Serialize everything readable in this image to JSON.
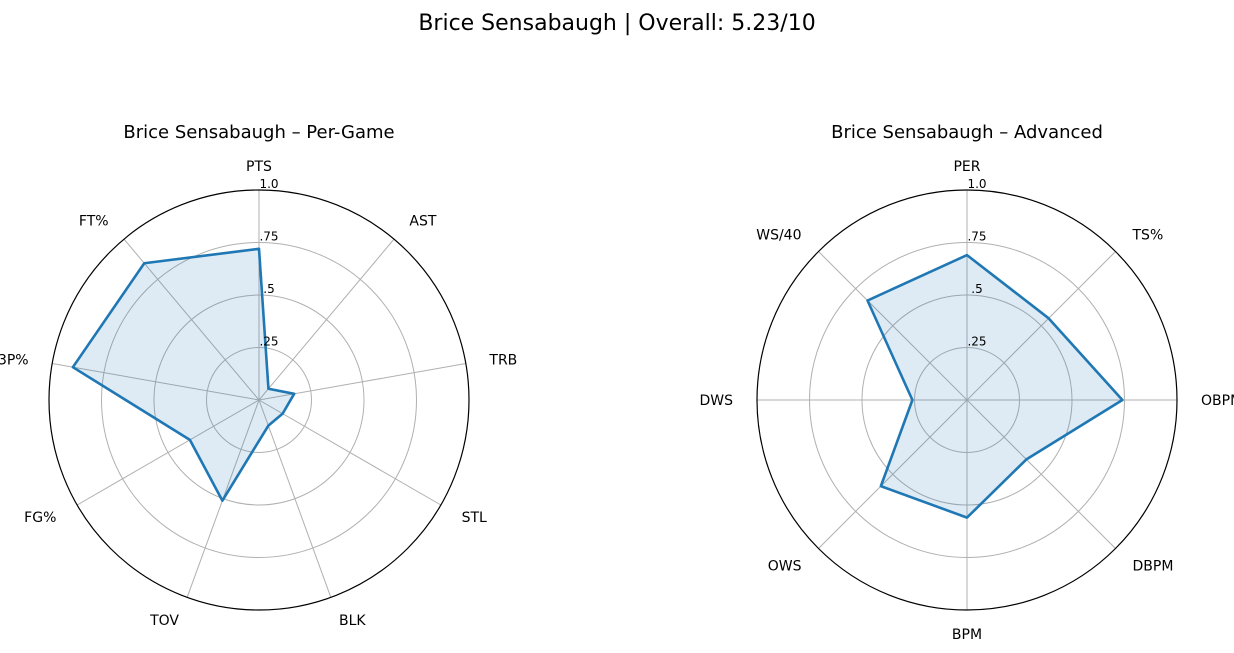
{
  "suptitle": "Brice Sensabaugh | Overall: 5.23/10",
  "colors": {
    "line": "#1f77b4",
    "fill": "#1f77b4",
    "grid": "#b0b0b0",
    "frame": "#000000"
  },
  "chart_data": [
    {
      "type": "radar",
      "title": "Brice Sensabaugh – Per-Game",
      "categories": [
        "PTS",
        "AST",
        "TRB",
        "STL",
        "BLK",
        "TOV",
        "FG%",
        "3P%",
        "FT%"
      ],
      "values": [
        0.72,
        0.07,
        0.17,
        0.13,
        0.13,
        0.51,
        0.38,
        0.9,
        0.85
      ],
      "rlim": [
        0,
        1
      ],
      "rticks": [
        0.25,
        0.5,
        0.75,
        1.0
      ],
      "rtick_labels": [
        ".25",
        ".5",
        ".75",
        "1.0"
      ],
      "grid": true
    },
    {
      "type": "radar",
      "title": "Brice Sensabaugh – Advanced",
      "categories": [
        "PER",
        "TS%",
        "OBPM",
        "DBPM",
        "BPM",
        "OWS",
        "DWS",
        "WS/40"
      ],
      "values": [
        0.69,
        0.55,
        0.74,
        0.4,
        0.56,
        0.58,
        0.26,
        0.67
      ],
      "rlim": [
        0,
        1
      ],
      "rticks": [
        0.25,
        0.5,
        0.75,
        1.0
      ],
      "rtick_labels": [
        ".25",
        ".5",
        ".75",
        "1.0"
      ],
      "grid": true
    }
  ]
}
